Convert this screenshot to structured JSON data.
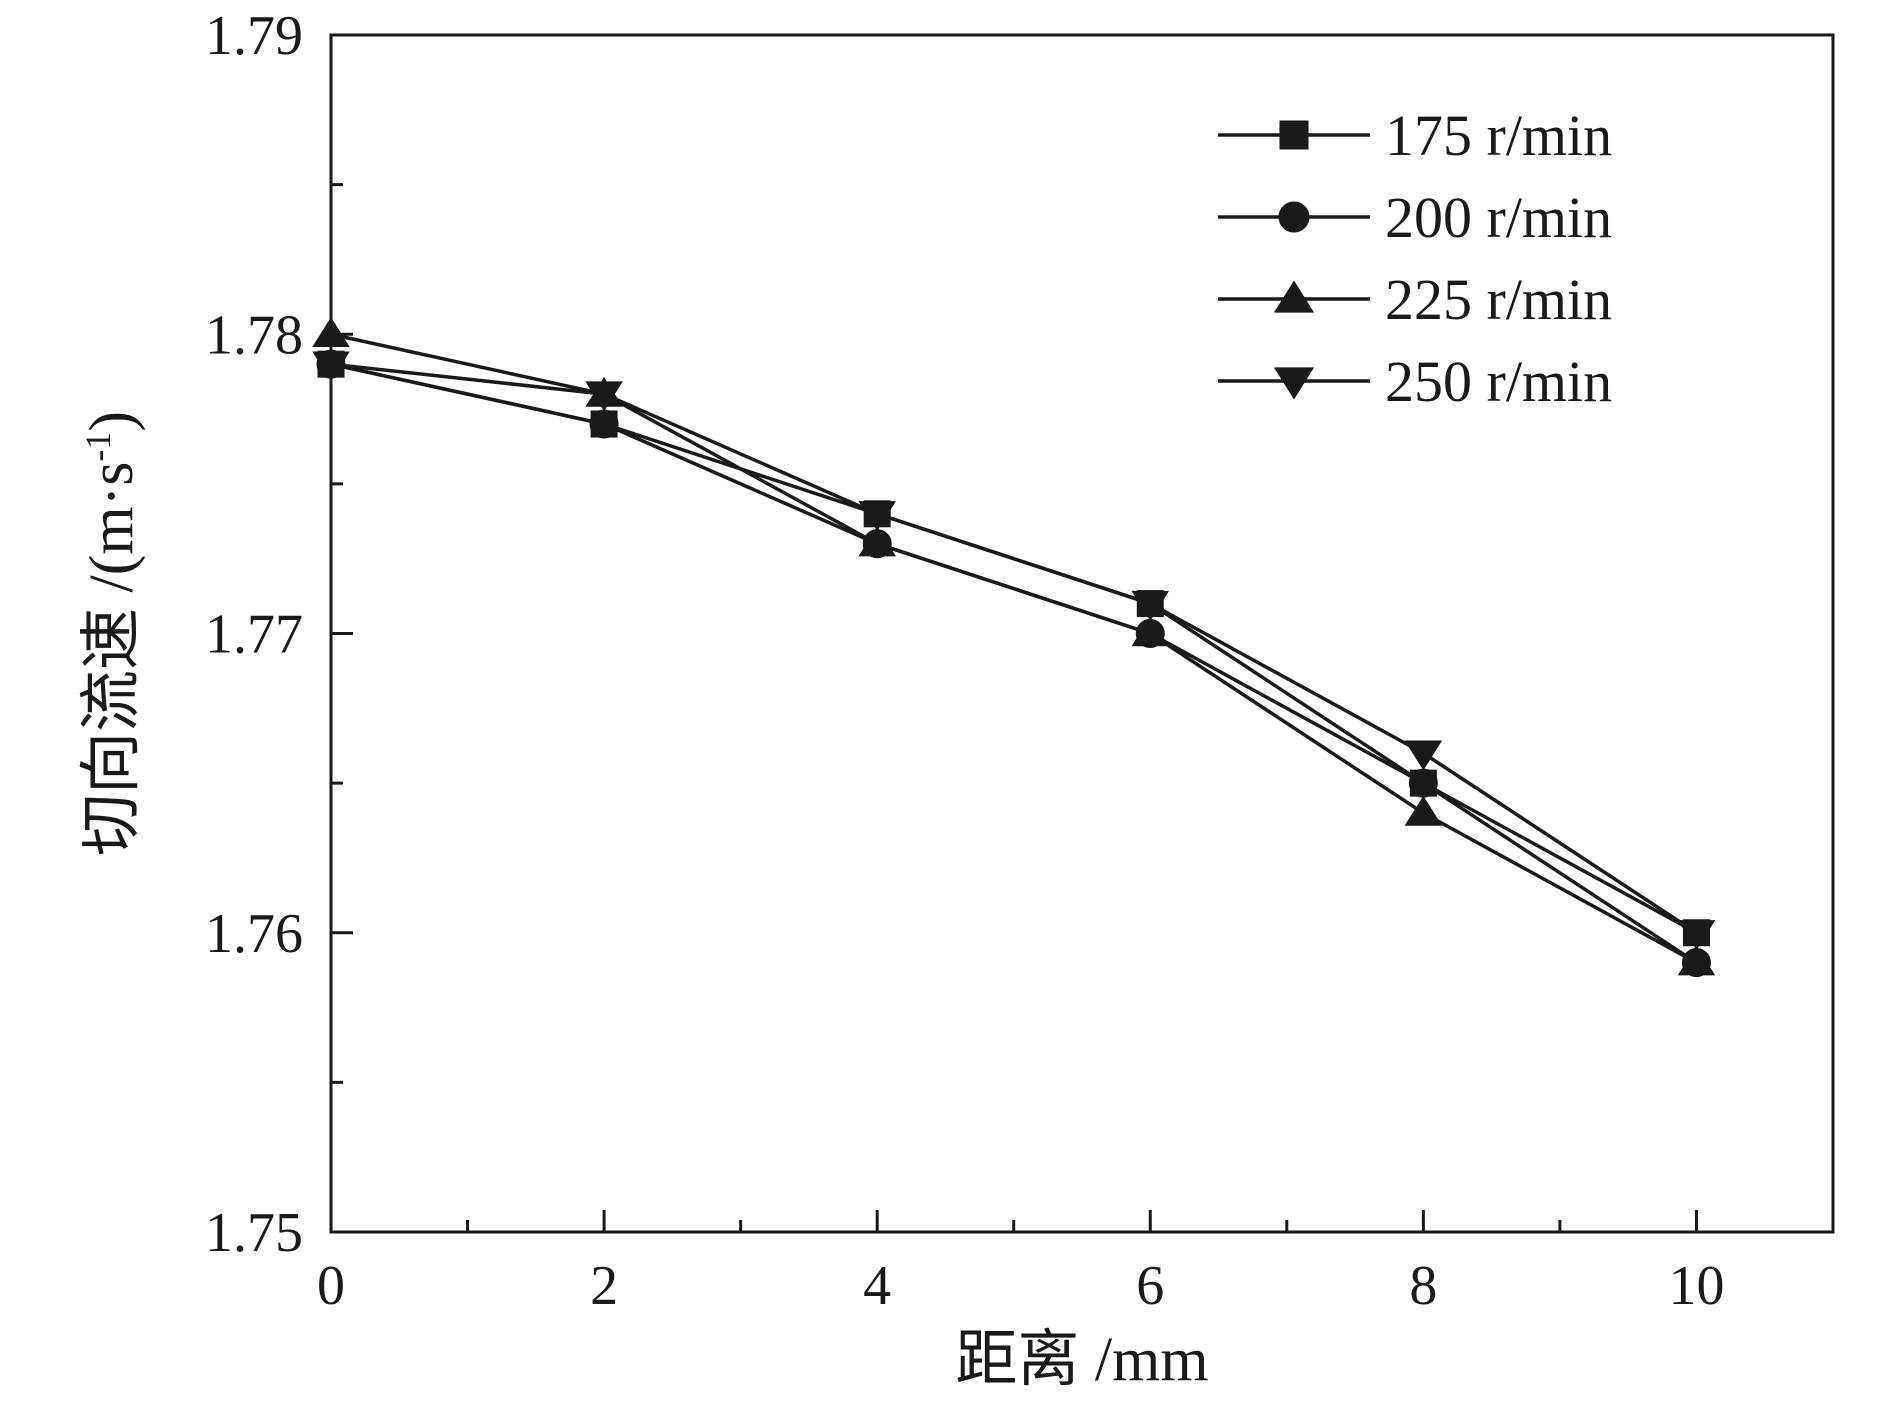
{
  "chart_data": {
    "type": "line",
    "title": "",
    "xlabel": "距离 /mm",
    "ylabel_main": "切向流速 /(m·s",
    "ylabel_sup": "-1",
    "ylabel_close": ")",
    "xlim": [
      0,
      11
    ],
    "ylim": [
      1.75,
      1.79
    ],
    "x_major_ticks": [
      0,
      2,
      4,
      6,
      8,
      10
    ],
    "x_tick_labels": [
      "0",
      "2",
      "4",
      "6",
      "8",
      "10"
    ],
    "x_minor_ticks": [
      1,
      3,
      5,
      7,
      9,
      11
    ],
    "y_major_ticks": [
      1.75,
      1.76,
      1.77,
      1.78,
      1.79
    ],
    "y_tick_labels": [
      "1.75",
      "1.76",
      "1.77",
      "1.78",
      "1.79"
    ],
    "y_minor_ticks": [
      1.755,
      1.765,
      1.775,
      1.785
    ],
    "grid": false,
    "legend_position": "top-right",
    "x": [
      0,
      2,
      4,
      6,
      8,
      10
    ],
    "series": [
      {
        "name": "175 r/min",
        "marker": "square",
        "values": [
          1.779,
          1.777,
          1.774,
          1.771,
          1.765,
          1.76
        ]
      },
      {
        "name": "200 r/min",
        "marker": "circle",
        "values": [
          1.779,
          1.777,
          1.773,
          1.77,
          1.765,
          1.759
        ]
      },
      {
        "name": "225 r/min",
        "marker": "triangle-up",
        "values": [
          1.78,
          1.778,
          1.773,
          1.77,
          1.764,
          1.759
        ]
      },
      {
        "name": "250 r/min",
        "marker": "triangle-down",
        "values": [
          1.779,
          1.778,
          1.774,
          1.771,
          1.766,
          1.76
        ]
      }
    ],
    "colors": {
      "line": "#1a1a1a",
      "marker": "#1a1a1a",
      "axis": "#1a1a1a"
    }
  }
}
